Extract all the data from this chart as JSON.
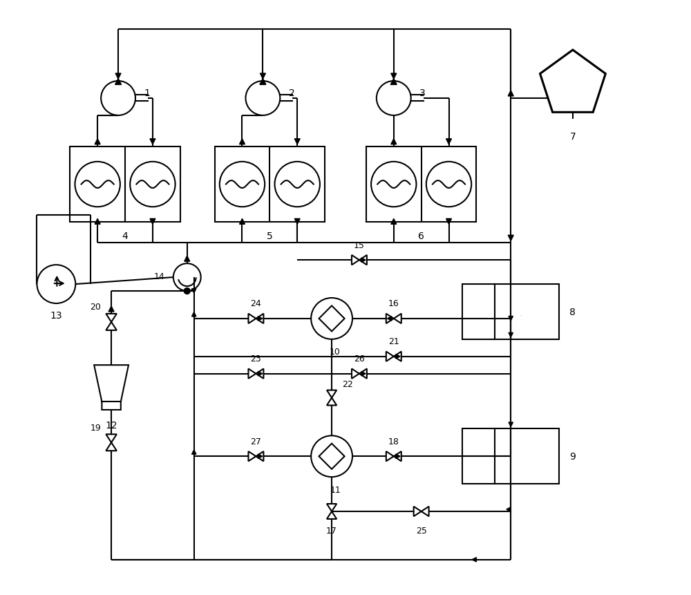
{
  "bg_color": "#ffffff",
  "line_color": "#000000",
  "line_width": 1.5,
  "figsize": [
    10,
    8.62
  ]
}
